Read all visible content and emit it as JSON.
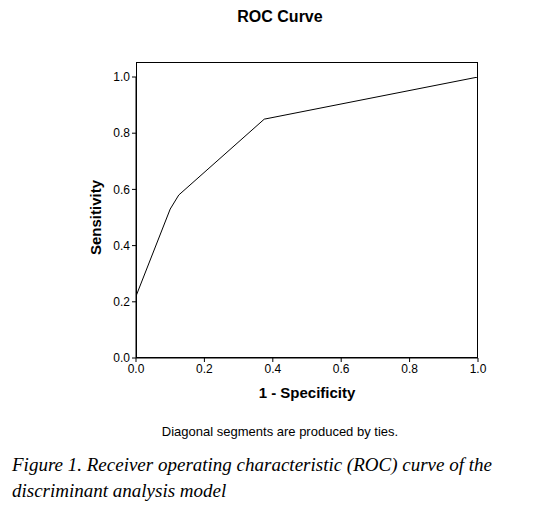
{
  "chart_data": {
    "type": "line",
    "title": "ROC Curve",
    "x_label": "1 - Specificity",
    "y_label": "Sensitivity",
    "footnote": "Diagonal segments are produced by ties.",
    "caption": "Figure 1. Receiver operating characteristic (ROC) curve of the discriminant analysis model",
    "x": [
      0,
      0,
      0.1,
      0.125,
      0.375,
      1
    ],
    "values": [
      0,
      0.22,
      0.53,
      0.58,
      0.85,
      1
    ],
    "color": "#000000",
    "xlim": [
      0,
      1
    ],
    "ylim": [
      0,
      1
    ],
    "xticks": [
      {
        "value": 0,
        "label": "0.0"
      },
      {
        "value": 0.2,
        "label": "0.2"
      },
      {
        "value": 0.4,
        "label": "0.4"
      },
      {
        "value": 0.6,
        "label": "0.6"
      },
      {
        "value": 0.8,
        "label": "0.8"
      },
      {
        "value": 1,
        "label": "1.0"
      }
    ],
    "yticks": [
      {
        "value": 0,
        "label": "0.0"
      },
      {
        "value": 0.2,
        "label": "0.2"
      },
      {
        "value": 0.4,
        "label": "0.4"
      },
      {
        "value": 0.6,
        "label": "0.6"
      },
      {
        "value": 0.8,
        "label": "0.8"
      },
      {
        "value": 1,
        "label": "1.0"
      }
    ],
    "grid": false
  }
}
